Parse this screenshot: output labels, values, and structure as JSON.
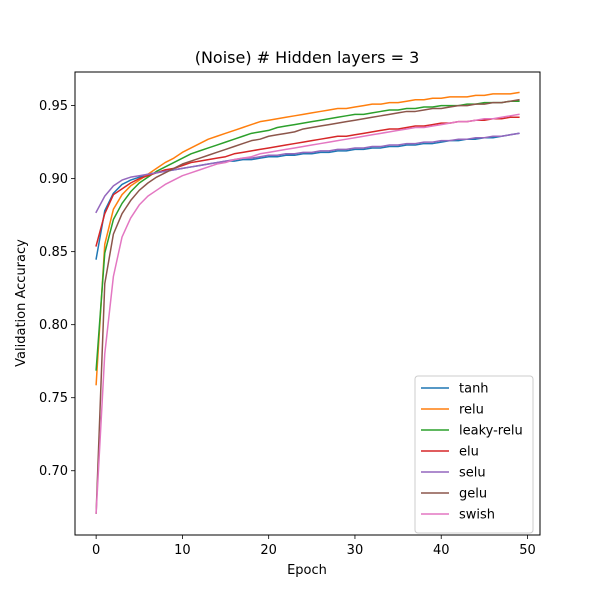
{
  "chart_data": {
    "type": "line",
    "title": "(Noise) # Hidden layers = 3",
    "xlabel": "Epoch",
    "ylabel": "Validation Accuracy",
    "xlim": [
      -2.45,
      51.45
    ],
    "ylim": [
      0.656,
      0.973
    ],
    "xticks": [
      0,
      10,
      20,
      30,
      40,
      50
    ],
    "yticks": [
      0.7,
      0.75,
      0.8,
      0.85,
      0.9,
      0.95
    ],
    "xtick_labels": [
      "0",
      "10",
      "20",
      "30",
      "40",
      "50"
    ],
    "ytick_labels": [
      "0.70",
      "0.75",
      "0.80",
      "0.85",
      "0.90",
      "0.95"
    ],
    "grid": false,
    "legend_position": "lower-right",
    "x": [
      0,
      1,
      2,
      3,
      4,
      5,
      6,
      7,
      8,
      9,
      10,
      11,
      12,
      13,
      14,
      15,
      16,
      17,
      18,
      19,
      20,
      21,
      22,
      23,
      24,
      25,
      26,
      27,
      28,
      29,
      30,
      31,
      32,
      33,
      34,
      35,
      36,
      37,
      38,
      39,
      40,
      41,
      42,
      43,
      44,
      45,
      46,
      47,
      48,
      49
    ],
    "series": [
      {
        "name": "tanh",
        "color": "#1f77b4",
        "values": [
          0.845,
          0.878,
          0.89,
          0.896,
          0.899,
          0.901,
          0.903,
          0.904,
          0.905,
          0.906,
          0.907,
          0.908,
          0.909,
          0.91,
          0.911,
          0.912,
          0.912,
          0.913,
          0.913,
          0.914,
          0.915,
          0.915,
          0.916,
          0.916,
          0.917,
          0.917,
          0.918,
          0.918,
          0.919,
          0.919,
          0.92,
          0.92,
          0.921,
          0.921,
          0.922,
          0.922,
          0.923,
          0.923,
          0.924,
          0.924,
          0.925,
          0.926,
          0.926,
          0.927,
          0.927,
          0.928,
          0.928,
          0.929,
          0.93,
          0.931
        ]
      },
      {
        "name": "relu",
        "color": "#ff7f0e",
        "values": [
          0.759,
          0.855,
          0.879,
          0.889,
          0.895,
          0.899,
          0.903,
          0.907,
          0.911,
          0.914,
          0.918,
          0.921,
          0.924,
          0.927,
          0.929,
          0.931,
          0.933,
          0.935,
          0.937,
          0.939,
          0.94,
          0.941,
          0.942,
          0.943,
          0.944,
          0.945,
          0.946,
          0.947,
          0.948,
          0.948,
          0.949,
          0.95,
          0.951,
          0.951,
          0.952,
          0.952,
          0.953,
          0.954,
          0.954,
          0.955,
          0.955,
          0.956,
          0.956,
          0.956,
          0.957,
          0.957,
          0.958,
          0.958,
          0.958,
          0.959
        ]
      },
      {
        "name": "leaky-relu",
        "color": "#2ca02c",
        "values": [
          0.769,
          0.849,
          0.872,
          0.883,
          0.891,
          0.897,
          0.901,
          0.905,
          0.908,
          0.911,
          0.914,
          0.917,
          0.919,
          0.921,
          0.923,
          0.925,
          0.927,
          0.929,
          0.931,
          0.932,
          0.933,
          0.935,
          0.936,
          0.937,
          0.938,
          0.939,
          0.94,
          0.941,
          0.942,
          0.943,
          0.944,
          0.944,
          0.945,
          0.946,
          0.947,
          0.947,
          0.948,
          0.948,
          0.949,
          0.949,
          0.95,
          0.95,
          0.95,
          0.951,
          0.951,
          0.952,
          0.952,
          0.952,
          0.953,
          0.953
        ]
      },
      {
        "name": "elu",
        "color": "#d62728",
        "values": [
          0.854,
          0.876,
          0.889,
          0.893,
          0.897,
          0.9,
          0.902,
          0.904,
          0.906,
          0.907,
          0.909,
          0.911,
          0.912,
          0.913,
          0.914,
          0.915,
          0.917,
          0.918,
          0.919,
          0.92,
          0.921,
          0.922,
          0.923,
          0.924,
          0.925,
          0.926,
          0.927,
          0.928,
          0.929,
          0.929,
          0.93,
          0.931,
          0.932,
          0.933,
          0.934,
          0.934,
          0.935,
          0.936,
          0.936,
          0.937,
          0.938,
          0.938,
          0.939,
          0.939,
          0.94,
          0.94,
          0.941,
          0.941,
          0.942,
          0.942
        ]
      },
      {
        "name": "selu",
        "color": "#9467bd",
        "values": [
          0.877,
          0.888,
          0.895,
          0.899,
          0.901,
          0.902,
          0.903,
          0.904,
          0.905,
          0.906,
          0.907,
          0.908,
          0.909,
          0.91,
          0.911,
          0.912,
          0.913,
          0.914,
          0.914,
          0.915,
          0.916,
          0.916,
          0.917,
          0.917,
          0.918,
          0.918,
          0.919,
          0.919,
          0.92,
          0.92,
          0.921,
          0.921,
          0.922,
          0.922,
          0.923,
          0.923,
          0.924,
          0.924,
          0.925,
          0.925,
          0.926,
          0.926,
          0.927,
          0.927,
          0.928,
          0.928,
          0.929,
          0.929,
          0.93,
          0.931
        ]
      },
      {
        "name": "gelu",
        "color": "#8c564b",
        "values": [
          0.671,
          0.828,
          0.862,
          0.876,
          0.885,
          0.892,
          0.897,
          0.901,
          0.904,
          0.907,
          0.91,
          0.912,
          0.914,
          0.916,
          0.918,
          0.92,
          0.922,
          0.924,
          0.926,
          0.927,
          0.929,
          0.93,
          0.931,
          0.932,
          0.934,
          0.935,
          0.936,
          0.937,
          0.938,
          0.939,
          0.94,
          0.941,
          0.942,
          0.943,
          0.944,
          0.945,
          0.946,
          0.946,
          0.947,
          0.948,
          0.948,
          0.949,
          0.95,
          0.95,
          0.951,
          0.951,
          0.952,
          0.952,
          0.953,
          0.954
        ]
      },
      {
        "name": "swish",
        "color": "#e377c2",
        "values": [
          0.671,
          0.78,
          0.833,
          0.86,
          0.873,
          0.882,
          0.888,
          0.892,
          0.896,
          0.899,
          0.902,
          0.904,
          0.906,
          0.908,
          0.91,
          0.911,
          0.913,
          0.914,
          0.915,
          0.917,
          0.918,
          0.919,
          0.92,
          0.921,
          0.922,
          0.923,
          0.924,
          0.925,
          0.926,
          0.927,
          0.928,
          0.929,
          0.93,
          0.931,
          0.932,
          0.933,
          0.934,
          0.935,
          0.935,
          0.936,
          0.937,
          0.938,
          0.939,
          0.939,
          0.94,
          0.941,
          0.941,
          0.942,
          0.943,
          0.944
        ]
      }
    ]
  }
}
